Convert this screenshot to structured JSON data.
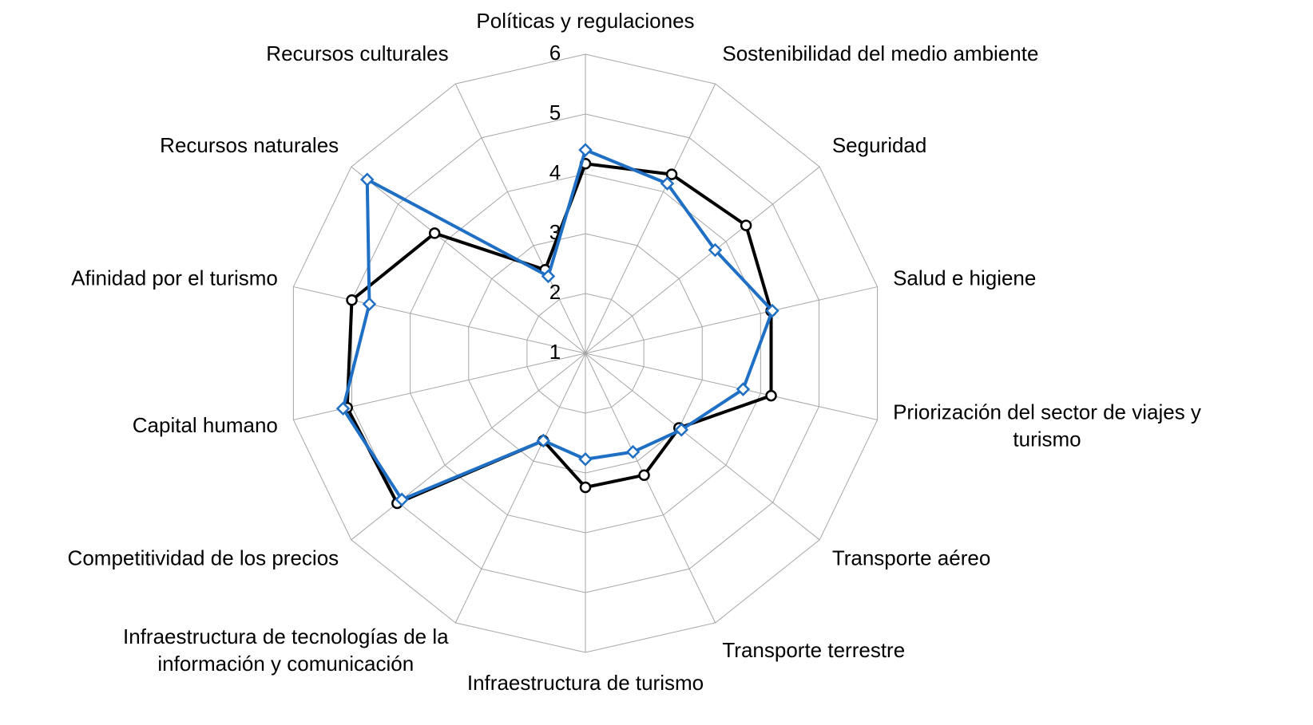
{
  "chart_data": {
    "type": "radar",
    "categories": [
      "Políticas y regulaciones",
      "Sostenibilidad del medio ambiente",
      "Seguridad",
      "Salud e higiene",
      "Priorización del sector de viajes y\nturismo",
      "Transporte aéreo",
      "Transporte terrestre",
      "Infraestructura de turismo",
      "Infraestructura de tecnologías de la\ninformación y comunicación",
      "Competitividad de los precios",
      "Capital humano",
      "Afinidad por el turismo",
      "Recursos naturales",
      "Recursos culturales"
    ],
    "series": [
      {
        "color": "#000000",
        "marker": "circle",
        "values": [
          4.17,
          4.32,
          4.43,
          4.18,
          4.18,
          3.0,
          3.26,
          3.24,
          2.62,
          5.02,
          5.08,
          5.0,
          4.22,
          2.55
        ]
      },
      {
        "color": "#1f6fc5",
        "marker": "diamond",
        "values": [
          4.4,
          4.15,
          3.77,
          4.2,
          3.7,
          3.05,
          2.83,
          2.77,
          2.62,
          4.92,
          5.15,
          4.7,
          5.66,
          2.43
        ]
      }
    ],
    "rlim": [
      1,
      6
    ],
    "rticks": [
      1,
      2,
      3,
      4,
      5,
      6
    ],
    "grid": true
  }
}
